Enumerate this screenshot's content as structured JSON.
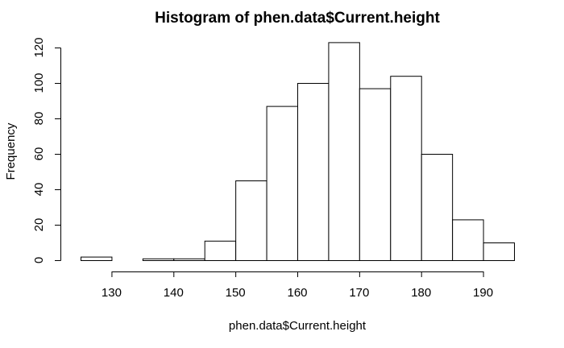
{
  "chart_data": {
    "type": "bar",
    "subtype": "histogram",
    "title": "Histogram of phen.data$Current.height",
    "xlabel": "phen.data$Current.height",
    "ylabel": "Frequency",
    "bin_edges": [
      125,
      130,
      135,
      140,
      145,
      150,
      155,
      160,
      165,
      170,
      175,
      180,
      185,
      190,
      195
    ],
    "values": [
      2,
      0,
      1,
      1,
      11,
      45,
      87,
      100,
      123,
      97,
      104,
      60,
      23,
      10
    ],
    "xlim": [
      125,
      195
    ],
    "ylim": [
      0,
      125
    ],
    "xticks": [
      130,
      140,
      150,
      160,
      170,
      180,
      190
    ],
    "yticks": [
      0,
      20,
      40,
      60,
      80,
      100,
      120
    ],
    "grid": false,
    "colors": {
      "bar_fill": "#ffffff",
      "bar_stroke": "#000000",
      "background": "#ffffff"
    }
  }
}
